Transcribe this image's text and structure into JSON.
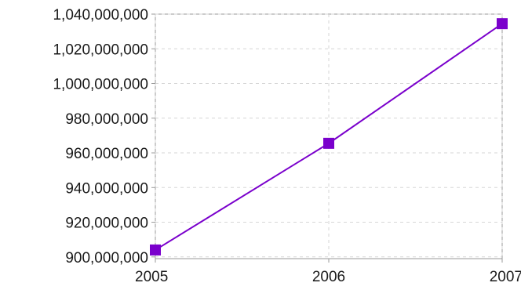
{
  "chart_data": {
    "type": "line",
    "title": "",
    "xlabel": "",
    "ylabel": "",
    "x": [
      2005,
      2006,
      2007
    ],
    "x_tick_labels": [
      "2005",
      "2006",
      "2007"
    ],
    "series": [
      {
        "values": [
          904000000,
          965500000,
          1034500000
        ],
        "color": "#7a00cc",
        "marker": "square"
      }
    ],
    "ylim": [
      899000000,
      1040000000
    ],
    "y_ticks": [
      900000000,
      920000000,
      940000000,
      960000000,
      980000000,
      1000000000,
      1020000000,
      1040000000
    ],
    "y_tick_labels": [
      "900,000,000",
      "920,000,000",
      "940,000,000",
      "960,000,000",
      "980,000,000",
      "1,000,000,000",
      "1,020,000,000",
      "1,040,000,000"
    ],
    "grid": true,
    "legend": "none"
  }
}
